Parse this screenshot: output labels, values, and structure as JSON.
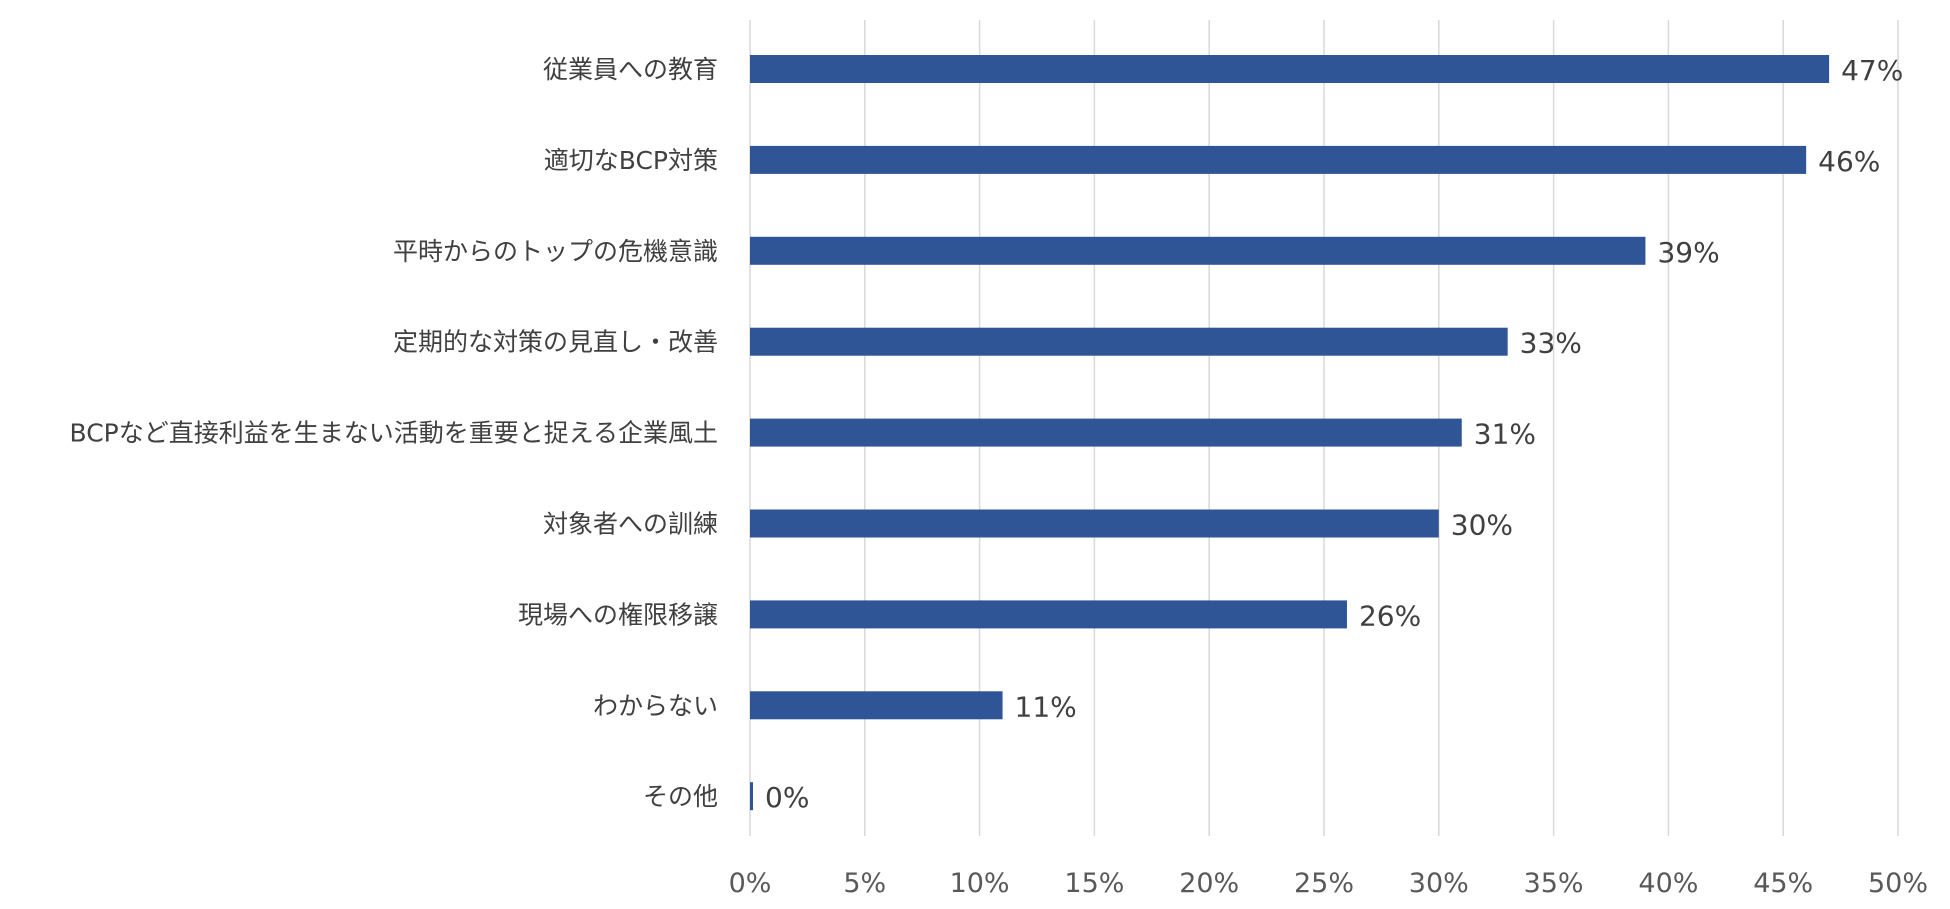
{
  "chart_data": {
    "type": "bar",
    "orientation": "horizontal",
    "categories": [
      "従業員への教育",
      "適切なBCP対策",
      "平時からのトップの危機意識",
      "定期的な対策の見直し・改善",
      "BCPなど直接利益を生まない活動を重要と捉える企業風土",
      "対象者への訓練",
      "現場への権限移譲",
      "わからない",
      "その他"
    ],
    "values": [
      47,
      46,
      39,
      33,
      31,
      30,
      26,
      11,
      0
    ],
    "value_labels": [
      "47%",
      "46%",
      "39%",
      "33%",
      "31%",
      "30%",
      "26%",
      "11%",
      "0%"
    ],
    "xlim": [
      0,
      50
    ],
    "ticks": [
      0,
      5,
      10,
      15,
      20,
      25,
      30,
      35,
      40,
      45,
      50
    ],
    "tick_labels": [
      "0%",
      "5%",
      "10%",
      "15%",
      "20%",
      "25%",
      "30%",
      "35%",
      "40%",
      "45%",
      "50%"
    ],
    "grid": "vertical",
    "legend": "none",
    "colors": {
      "bar": "#2F5597",
      "grid": "#D9D9D9",
      "text": "#404040"
    }
  }
}
